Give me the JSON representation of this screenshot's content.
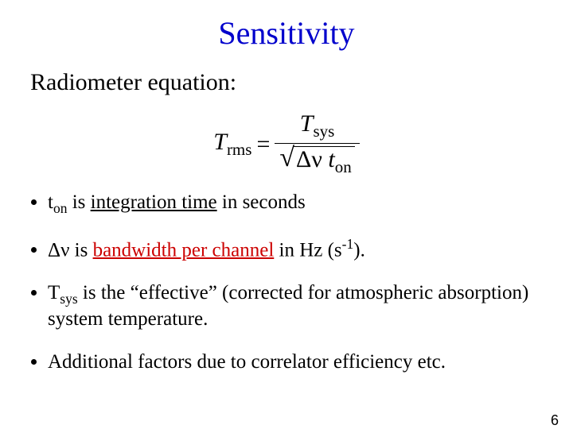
{
  "colors": {
    "title": "#0000cc",
    "body": "#000000",
    "red": "#cc0000",
    "background": "#ffffff"
  },
  "title": "Sensitivity",
  "subtitle": "Radiometer equation:",
  "equation": {
    "lhs_var": "T",
    "lhs_sub": "rms",
    "eq": " = ",
    "num_var": "T",
    "num_sub": "sys",
    "den_delta": "Δν ",
    "den_t": "t",
    "den_t_sub": "on"
  },
  "bullets": {
    "b1_pre": "t",
    "b1_sub": "on",
    "b1_post_a": " is ",
    "b1_underline": "integration time",
    "b1_post_b": " in seconds",
    "b2_pre": "Δν is ",
    "b2_red_underline": "bandwidth per channel",
    "b2_post_a": " in Hz (s",
    "b2_sup": "-1",
    "b2_post_b": ").",
    "b3_pre": "T",
    "b3_sub": "sys",
    "b3_post": " is the “effective” (corrected for atmospheric absorption) system temperature.",
    "b4": "Additional factors due to correlator efficiency etc."
  },
  "page_number": "6"
}
